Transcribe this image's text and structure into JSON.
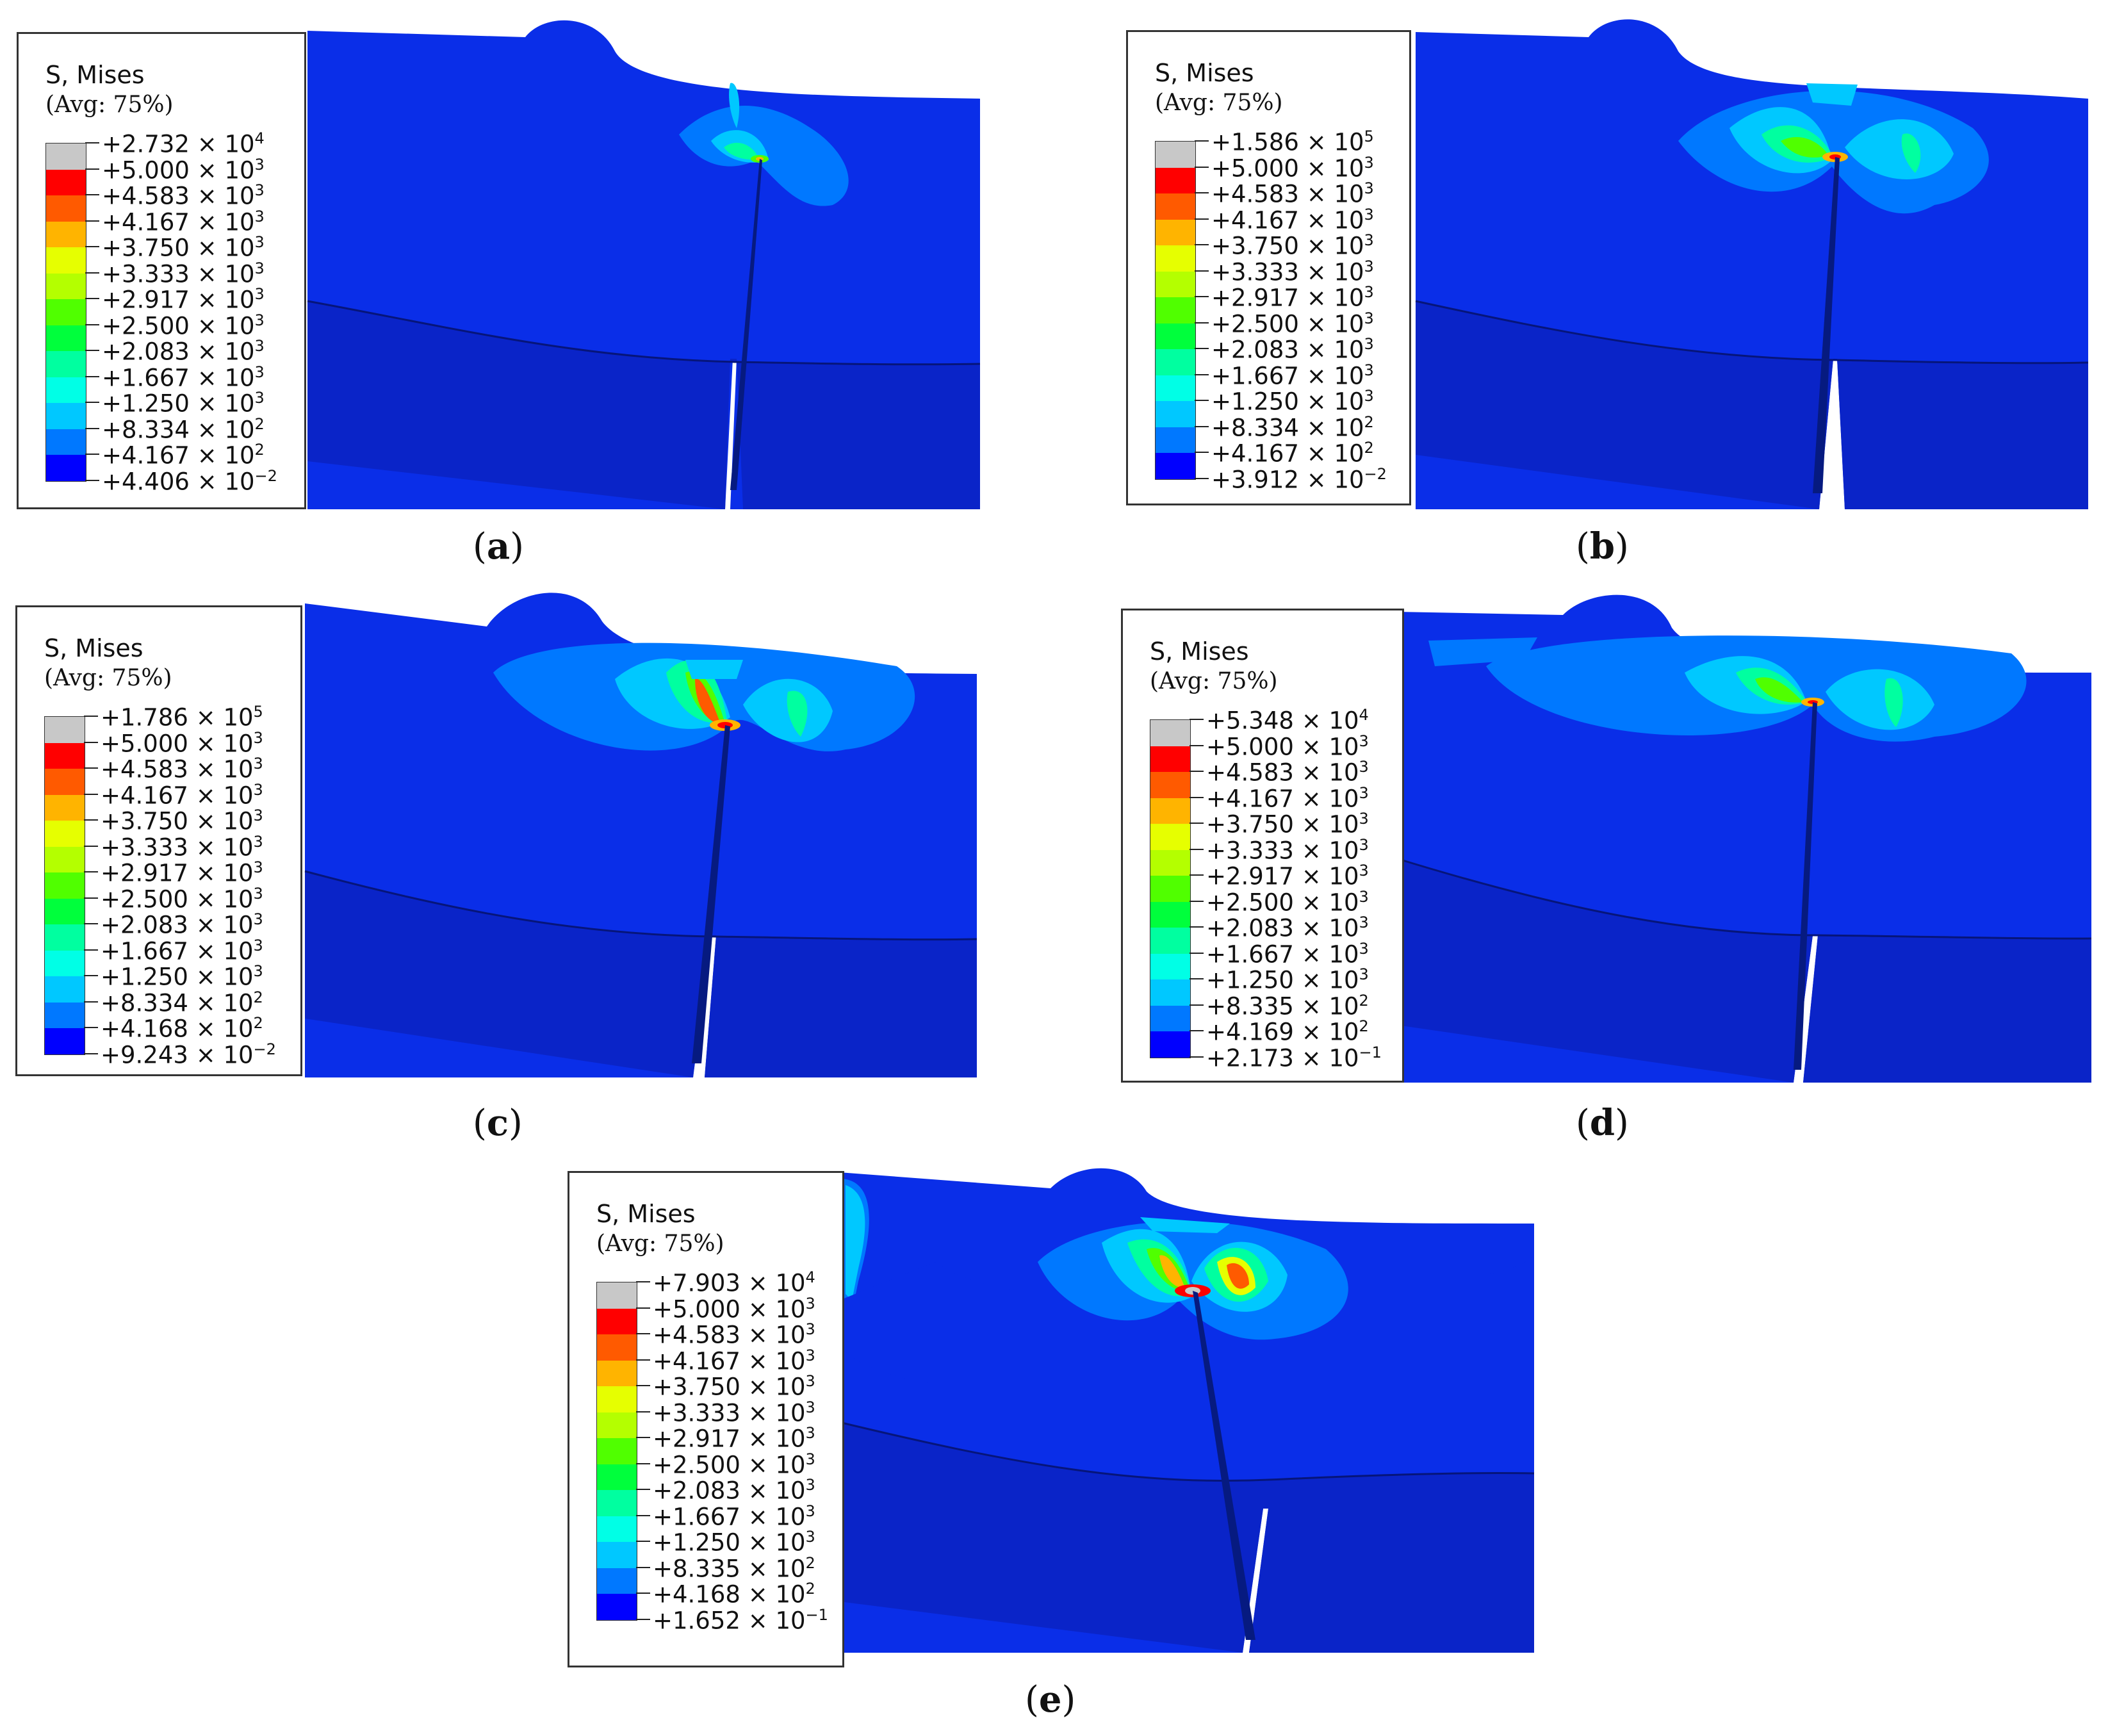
{
  "colors": {
    "band": [
      "#c8c8c8",
      "#ff0000",
      "#ff5a00",
      "#ffb400",
      "#e6ff00",
      "#b4ff00",
      "#50ff00",
      "#00ff3c",
      "#00ffa0",
      "#00ffe6",
      "#00c8ff",
      "#0078ff",
      "#0000ff"
    ],
    "background_blue": "#0a2ee8",
    "lower_blue": "#0a24c8"
  },
  "panels": [
    {
      "caption": "a",
      "legend_title": "S, Mises",
      "legend_avg": "(Avg: 75%)",
      "levels": [
        {
          "mant": "+2.732",
          "exp": "4"
        },
        {
          "mant": "+5.000",
          "exp": "3"
        },
        {
          "mant": "+4.583",
          "exp": "3"
        },
        {
          "mant": "+4.167",
          "exp": "3"
        },
        {
          "mant": "+3.750",
          "exp": "3"
        },
        {
          "mant": "+3.333",
          "exp": "3"
        },
        {
          "mant": "+2.917",
          "exp": "3"
        },
        {
          "mant": "+2.500",
          "exp": "3"
        },
        {
          "mant": "+2.083",
          "exp": "3"
        },
        {
          "mant": "+1.667",
          "exp": "3"
        },
        {
          "mant": "+1.250",
          "exp": "3"
        },
        {
          "mant": "+8.334",
          "exp": "2"
        },
        {
          "mant": "+4.167",
          "exp": "2"
        },
        {
          "mant": "+4.406",
          "exp": "−2"
        }
      ]
    },
    {
      "caption": "b",
      "legend_title": "S, Mises",
      "legend_avg": "(Avg: 75%)",
      "levels": [
        {
          "mant": "+1.586",
          "exp": "5"
        },
        {
          "mant": "+5.000",
          "exp": "3"
        },
        {
          "mant": "+4.583",
          "exp": "3"
        },
        {
          "mant": "+4.167",
          "exp": "3"
        },
        {
          "mant": "+3.750",
          "exp": "3"
        },
        {
          "mant": "+3.333",
          "exp": "3"
        },
        {
          "mant": "+2.917",
          "exp": "3"
        },
        {
          "mant": "+2.500",
          "exp": "3"
        },
        {
          "mant": "+2.083",
          "exp": "3"
        },
        {
          "mant": "+1.667",
          "exp": "3"
        },
        {
          "mant": "+1.250",
          "exp": "3"
        },
        {
          "mant": "+8.334",
          "exp": "2"
        },
        {
          "mant": "+4.167",
          "exp": "2"
        },
        {
          "mant": "+3.912",
          "exp": "−2"
        }
      ]
    },
    {
      "caption": "c",
      "legend_title": "S, Mises",
      "legend_avg": "(Avg: 75%)",
      "levels": [
        {
          "mant": "+1.786",
          "exp": "5"
        },
        {
          "mant": "+5.000",
          "exp": "3"
        },
        {
          "mant": "+4.583",
          "exp": "3"
        },
        {
          "mant": "+4.167",
          "exp": "3"
        },
        {
          "mant": "+3.750",
          "exp": "3"
        },
        {
          "mant": "+3.333",
          "exp": "3"
        },
        {
          "mant": "+2.917",
          "exp": "3"
        },
        {
          "mant": "+2.500",
          "exp": "3"
        },
        {
          "mant": "+2.083",
          "exp": "3"
        },
        {
          "mant": "+1.667",
          "exp": "3"
        },
        {
          "mant": "+1.250",
          "exp": "3"
        },
        {
          "mant": "+8.334",
          "exp": "2"
        },
        {
          "mant": "+4.168",
          "exp": "2"
        },
        {
          "mant": "+9.243",
          "exp": "−2"
        }
      ]
    },
    {
      "caption": "d",
      "legend_title": "S, Mises",
      "legend_avg": "(Avg: 75%)",
      "levels": [
        {
          "mant": "+5.348",
          "exp": "4"
        },
        {
          "mant": "+5.000",
          "exp": "3"
        },
        {
          "mant": "+4.583",
          "exp": "3"
        },
        {
          "mant": "+4.167",
          "exp": "3"
        },
        {
          "mant": "+3.750",
          "exp": "3"
        },
        {
          "mant": "+3.333",
          "exp": "3"
        },
        {
          "mant": "+2.917",
          "exp": "3"
        },
        {
          "mant": "+2.500",
          "exp": "3"
        },
        {
          "mant": "+2.083",
          "exp": "3"
        },
        {
          "mant": "+1.667",
          "exp": "3"
        },
        {
          "mant": "+1.250",
          "exp": "3"
        },
        {
          "mant": "+8.335",
          "exp": "2"
        },
        {
          "mant": "+4.169",
          "exp": "2"
        },
        {
          "mant": "+2.173",
          "exp": "−1"
        }
      ]
    },
    {
      "caption": "e",
      "legend_title": "S, Mises",
      "legend_avg": "(Avg: 75%)",
      "levels": [
        {
          "mant": "+7.903",
          "exp": "4"
        },
        {
          "mant": "+5.000",
          "exp": "3"
        },
        {
          "mant": "+4.583",
          "exp": "3"
        },
        {
          "mant": "+4.167",
          "exp": "3"
        },
        {
          "mant": "+3.750",
          "exp": "3"
        },
        {
          "mant": "+3.333",
          "exp": "3"
        },
        {
          "mant": "+2.917",
          "exp": "3"
        },
        {
          "mant": "+2.500",
          "exp": "3"
        },
        {
          "mant": "+2.083",
          "exp": "3"
        },
        {
          "mant": "+1.667",
          "exp": "3"
        },
        {
          "mant": "+1.250",
          "exp": "3"
        },
        {
          "mant": "+8.335",
          "exp": "2"
        },
        {
          "mant": "+4.168",
          "exp": "2"
        },
        {
          "mant": "+1.652",
          "exp": "−1"
        }
      ]
    }
  ]
}
